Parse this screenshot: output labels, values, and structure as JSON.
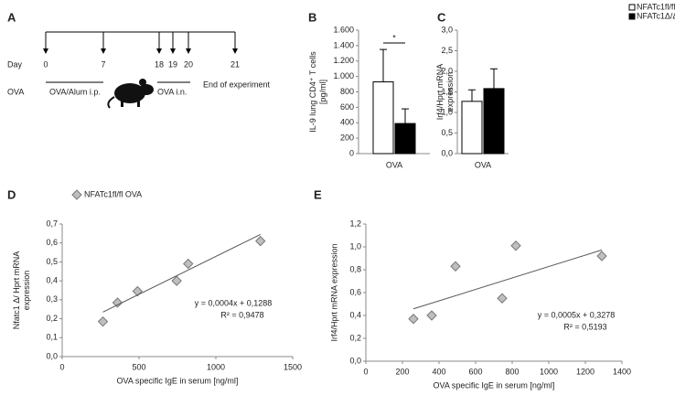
{
  "timeline": {
    "label": "A",
    "day_label": "Day",
    "days": [
      "0",
      "7",
      "18",
      "19",
      "20",
      "21"
    ],
    "ova_label": "OVA",
    "phases": [
      "OVA/Alum  i.p.",
      "OVA  i.n.",
      "End of experiment"
    ]
  },
  "chart_data": [
    {
      "type": "bar",
      "panel": "B",
      "ylabel": [
        "IL-9 lung CD4⁺ T cells",
        "[pg/ml]"
      ],
      "categories": [
        "OVA"
      ],
      "series": [
        {
          "color": "#ffffff",
          "values": [
            930
          ],
          "errors": [
            420
          ]
        },
        {
          "color": "#000000",
          "values": [
            390
          ],
          "errors": [
            190
          ]
        }
      ],
      "ylim": [
        0,
        1600
      ],
      "yticks": [
        {
          "value": 0,
          "label": "0"
        },
        {
          "value": 200,
          "label": "200"
        },
        {
          "value": 400,
          "label": "400"
        },
        {
          "value": 600,
          "label": "600"
        },
        {
          "value": 800,
          "label": "800"
        },
        {
          "value": 1000,
          "label": "1.000"
        },
        {
          "value": 1200,
          "label": "1.200"
        },
        {
          "value": 1400,
          "label": "1.400"
        },
        {
          "value": 1600,
          "label": "1.600"
        }
      ],
      "annotation": "*"
    },
    {
      "type": "bar",
      "panel": "C",
      "ylabel": [
        "Irf4/Hprt mRNA",
        "expression"
      ],
      "categories": [
        "OVA"
      ],
      "series": [
        {
          "name": "NFATc1fl/fl",
          "color": "#ffffff",
          "values": [
            1.27
          ],
          "errors": [
            0.28
          ]
        },
        {
          "name": "NFATc1Δ/Δ",
          "color": "#000000",
          "values": [
            1.58
          ],
          "errors": [
            0.48
          ]
        }
      ],
      "ylim": [
        0,
        3
      ],
      "yticks": [
        {
          "value": 0,
          "label": "0,0"
        },
        {
          "value": 0.5,
          "label": "0,5"
        },
        {
          "value": 1,
          "label": "1,0"
        },
        {
          "value": 1.5,
          "label": "1,5"
        },
        {
          "value": 2,
          "label": "2,0"
        },
        {
          "value": 2.5,
          "label": "2,5"
        },
        {
          "value": 3,
          "label": "3,0"
        }
      ],
      "legend": "top-right"
    },
    {
      "type": "scatter",
      "panel": "D",
      "ylabel": [
        "Nfatc1 Δ/ Hprt mRNA",
        "expression"
      ],
      "xlabel": "OVA specific IgE in serum [ng/ml]",
      "series": [
        {
          "name": "NFATc1fl/fl OVA",
          "color": "#bfbfbf",
          "x": [
            265,
            360,
            490,
            745,
            820,
            1290
          ],
          "values": [
            0.185,
            0.285,
            0.345,
            0.4,
            0.49,
            0.61
          ]
        }
      ],
      "xlim": [
        0,
        1500
      ],
      "xticks": [
        0,
        500,
        1000,
        1500
      ],
      "ylim": [
        0,
        0.7
      ],
      "yticks": [
        {
          "value": 0,
          "label": "0,0"
        },
        {
          "value": 0.1,
          "label": "0,1"
        },
        {
          "value": 0.2,
          "label": "0,2"
        },
        {
          "value": 0.3,
          "label": "0,3"
        },
        {
          "value": 0.4,
          "label": "0,4"
        },
        {
          "value": 0.5,
          "label": "0,5"
        },
        {
          "value": 0.6,
          "label": "0,6"
        },
        {
          "value": 0.7,
          "label": "0,7"
        }
      ],
      "trendline": {
        "slope": 0.0004,
        "intercept": 0.1288,
        "label": "y = 0,0004x + 0,1288",
        "r2": 0.9478,
        "r2_label": "R² = 0,9478"
      },
      "legend": "top-left"
    },
    {
      "type": "scatter",
      "panel": "E",
      "ylabel": [
        "Irf4/Hprt mRNA expression"
      ],
      "xlabel": "OVA specific IgE in serum [ng/ml]",
      "series": [
        {
          "color": "#bfbfbf",
          "x": [
            260,
            360,
            490,
            745,
            820,
            1290
          ],
          "values": [
            0.37,
            0.4,
            0.83,
            0.55,
            1.01,
            0.92
          ]
        }
      ],
      "xlim": [
        0,
        1400
      ],
      "xticks": [
        0,
        200,
        400,
        600,
        800,
        1000,
        1200,
        1400
      ],
      "ylim": [
        0,
        1.2
      ],
      "yticks": [
        {
          "value": 0,
          "label": "0,0"
        },
        {
          "value": 0.2,
          "label": "0,2"
        },
        {
          "value": 0.4,
          "label": "0,4"
        },
        {
          "value": 0.6,
          "label": "0,6"
        },
        {
          "value": 0.8,
          "label": "0,8"
        },
        {
          "value": 1,
          "label": "1,0"
        },
        {
          "value": 1.2,
          "label": "1,2"
        }
      ],
      "trendline": {
        "slope": 0.0005,
        "intercept": 0.3278,
        "label": "y = 0,0005x + 0,3278",
        "r2": 0.5193,
        "r2_label": "R² = 0,5193"
      }
    }
  ]
}
